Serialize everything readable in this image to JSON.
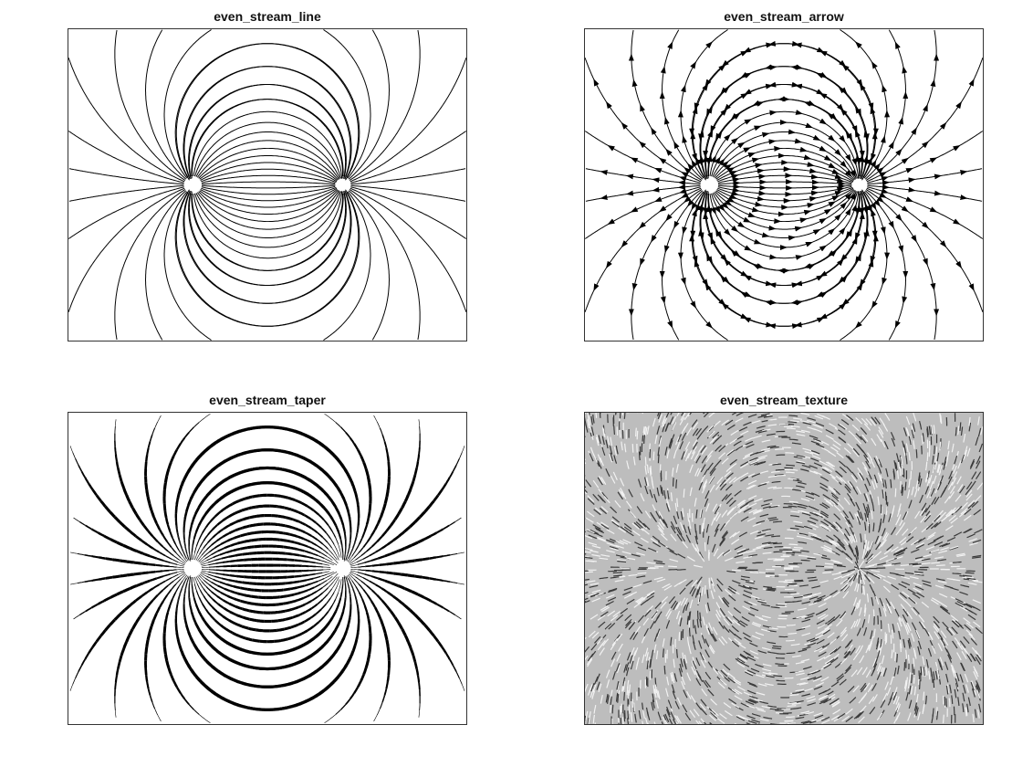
{
  "figure": {
    "panels": [
      {
        "title": "even_stream_line",
        "style": "line"
      },
      {
        "title": "even_stream_arrow",
        "style": "arrow"
      },
      {
        "title": "even_stream_taper",
        "style": "taper"
      },
      {
        "title": "even_stream_texture",
        "style": "texture"
      }
    ]
  },
  "colors": {
    "stroke": "#000000",
    "frame": "#333333",
    "texture_bg": "#bdbdbd",
    "texture_dark": "#3a3a3a",
    "texture_light": "#f2f2f2"
  }
}
